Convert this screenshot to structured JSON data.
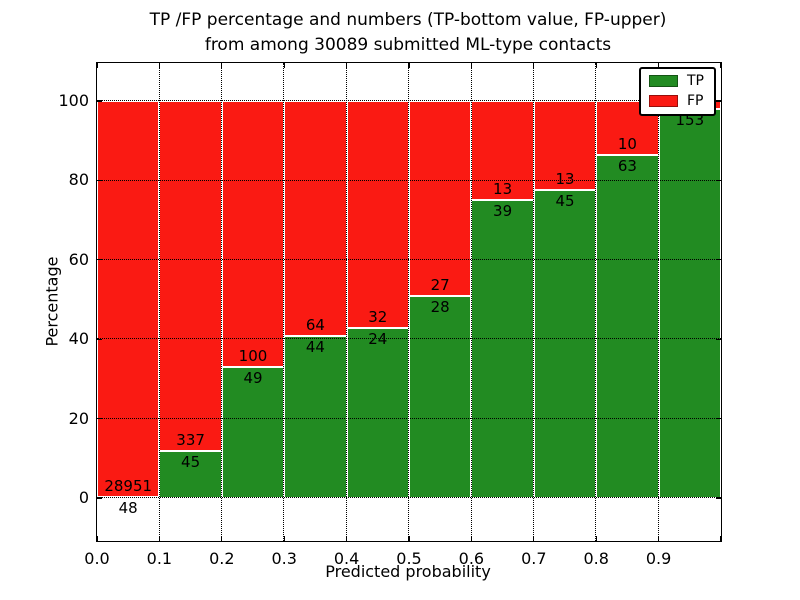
{
  "chart_data": {
    "type": "bar",
    "stacked": true,
    "normalized_to_percent": true,
    "title_line1": "TP /FP percentage and numbers (TP-bottom value, FP-upper)",
    "title_line2": "from among 30089 submitted ML-type contacts",
    "title": "TP /FP percentage and numbers (TP-bottom value, FP-upper)\nfrom among 30089 submitted ML-type contacts",
    "total_submitted_contacts": 30089,
    "xlabel": "Predicted probability",
    "ylabel": "Percentage",
    "xticks": [
      "0.0",
      "0.1",
      "0.2",
      "0.3",
      "0.4",
      "0.5",
      "0.6",
      "0.7",
      "0.8",
      "0.9"
    ],
    "yticks": [
      0,
      20,
      40,
      60,
      80,
      100
    ],
    "xlim": [
      0.0,
      1.0
    ],
    "ylim": [
      -11,
      110
    ],
    "grid": true,
    "bin_width": 0.1,
    "bins": [
      {
        "x_range": [
          0.0,
          0.1
        ],
        "tp": 48,
        "fp": 28951,
        "tp_pct": 0.17
      },
      {
        "x_range": [
          0.1,
          0.2
        ],
        "tp": 45,
        "fp": 337,
        "tp_pct": 11.8
      },
      {
        "x_range": [
          0.2,
          0.3
        ],
        "tp": 49,
        "fp": 100,
        "tp_pct": 32.9
      },
      {
        "x_range": [
          0.3,
          0.4
        ],
        "tp": 44,
        "fp": 64,
        "tp_pct": 40.7
      },
      {
        "x_range": [
          0.4,
          0.5
        ],
        "tp": 24,
        "fp": 32,
        "tp_pct": 42.9
      },
      {
        "x_range": [
          0.5,
          0.6
        ],
        "tp": 28,
        "fp": 27,
        "tp_pct": 50.9
      },
      {
        "x_range": [
          0.6,
          0.7
        ],
        "tp": 39,
        "fp": 13,
        "tp_pct": 75.0
      },
      {
        "x_range": [
          0.7,
          0.8
        ],
        "tp": 45,
        "fp": 13,
        "tp_pct": 77.6
      },
      {
        "x_range": [
          0.8,
          0.9
        ],
        "tp": 63,
        "fp": 10,
        "tp_pct": 86.3
      },
      {
        "x_range": [
          0.9,
          1.0
        ],
        "tp": 153,
        "fp": null,
        "tp_pct": 98.0,
        "fp_label_hidden_behind_legend": true
      }
    ],
    "legend": {
      "position": "upper right",
      "entries": [
        {
          "label": "TP",
          "color": "#228b22"
        },
        {
          "label": "FP",
          "color": "#fa1a13"
        }
      ]
    },
    "colors": {
      "tp": "#228b22",
      "fp": "#fa1a13",
      "bar_edge": "#ffffff",
      "grid": "#000000",
      "background": "#ffffff"
    }
  }
}
